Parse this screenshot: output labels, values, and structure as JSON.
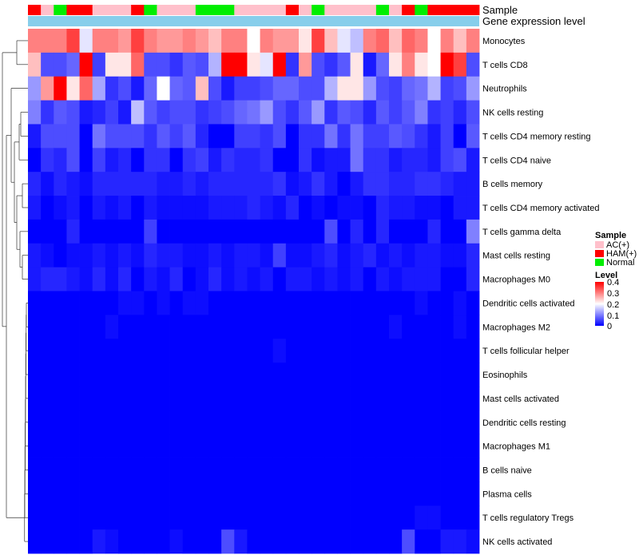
{
  "chart_data": {
    "type": "heatmap",
    "color_scale": {
      "low": "#0000ff",
      "mid": "#ffffff",
      "high": "#ff0000",
      "min": 0,
      "max": 0.4
    },
    "annotation_tracks": [
      "Sample",
      "Gene expression level"
    ],
    "sample_groups": [
      "AC(+)",
      "HAM(+)",
      "Normal"
    ],
    "sample_colors": {
      "AC(+)": "#ffc0cb",
      "HAM(+)": "#ff0000",
      "Normal": "#00ee00"
    },
    "gene_expression_color": "#87ceeb",
    "columns": [
      "HAM(+)",
      "AC(+)",
      "Normal",
      "HAM(+)",
      "HAM(+)",
      "AC(+)",
      "AC(+)",
      "AC(+)",
      "HAM(+)",
      "Normal",
      "AC(+)",
      "AC(+)",
      "AC(+)",
      "Normal",
      "Normal",
      "Normal",
      "AC(+)",
      "AC(+)",
      "AC(+)",
      "AC(+)",
      "HAM(+)",
      "AC(+)",
      "Normal",
      "AC(+)",
      "AC(+)",
      "AC(+)",
      "AC(+)",
      "Normal",
      "AC(+)",
      "HAM(+)",
      "Normal",
      "HAM(+)",
      "HAM(+)",
      "HAM(+)",
      "HAM(+)"
    ],
    "rows": [
      {
        "name": "Monocytes",
        "values": [
          0.3,
          0.3,
          0.3,
          0.35,
          0.18,
          0.3,
          0.3,
          0.28,
          0.35,
          0.3,
          0.28,
          0.28,
          0.3,
          0.28,
          0.25,
          0.3,
          0.3,
          0.2,
          0.3,
          0.28,
          0.28,
          0.22,
          0.35,
          0.25,
          0.18,
          0.15,
          0.3,
          0.32,
          0.25,
          0.32,
          0.3,
          0.2,
          0.3,
          0.25,
          0.3
        ]
      },
      {
        "name": "T cells CD8",
        "values": [
          0.25,
          0.06,
          0.06,
          0.08,
          0.4,
          0.05,
          0.22,
          0.22,
          0.32,
          0.06,
          0.06,
          0.04,
          0.07,
          0.06,
          0.14,
          0.4,
          0.4,
          0.22,
          0.18,
          0.4,
          0.04,
          0.28,
          0.06,
          0.04,
          0.07,
          0.22,
          0.02,
          0.08,
          0.22,
          0.3,
          0.22,
          0.2,
          0.4,
          0.35,
          0.06
        ]
      },
      {
        "name": "Neutrophils",
        "values": [
          0.12,
          0.28,
          0.4,
          0.22,
          0.32,
          0.13,
          0.04,
          0.06,
          0.02,
          0.08,
          0.2,
          0.08,
          0.07,
          0.25,
          0.06,
          0.02,
          0.05,
          0.05,
          0.06,
          0.08,
          0.08,
          0.06,
          0.06,
          0.14,
          0.22,
          0.22,
          0.12,
          0.06,
          0.05,
          0.08,
          0.09,
          0.14,
          0.05,
          0.06,
          0.12
        ]
      },
      {
        "name": "NK cells resting",
        "values": [
          0.1,
          0.04,
          0.07,
          0.06,
          0.02,
          0.03,
          0.05,
          0.02,
          0.15,
          0.07,
          0.05,
          0.06,
          0.06,
          0.04,
          0.05,
          0.06,
          0.08,
          0.09,
          0.12,
          0.06,
          0.04,
          0.07,
          0.12,
          0.04,
          0.07,
          0.06,
          0.03,
          0.07,
          0.05,
          0.07,
          0.1,
          0.04,
          0.05,
          0.03,
          0.06
        ]
      },
      {
        "name": "T cells CD4 memory resting",
        "values": [
          0.02,
          0.06,
          0.06,
          0.06,
          0.0,
          0.09,
          0.06,
          0.06,
          0.06,
          0.04,
          0.07,
          0.05,
          0.07,
          0.03,
          0.0,
          0.0,
          0.05,
          0.05,
          0.04,
          0.06,
          0.0,
          0.04,
          0.04,
          0.09,
          0.04,
          0.09,
          0.05,
          0.05,
          0.07,
          0.06,
          0.04,
          0.02,
          0.05,
          0.0,
          0.07
        ]
      },
      {
        "name": "T cells CD4 naive",
        "values": [
          0.0,
          0.04,
          0.03,
          0.06,
          0.0,
          0.05,
          0.02,
          0.03,
          0.0,
          0.04,
          0.04,
          0.0,
          0.04,
          0.05,
          0.02,
          0.04,
          0.03,
          0.03,
          0.04,
          0.0,
          0.0,
          0.04,
          0.01,
          0.02,
          0.02,
          0.09,
          0.04,
          0.04,
          0.02,
          0.03,
          0.03,
          0.02,
          0.05,
          0.06,
          0.02
        ]
      },
      {
        "name": "B cells memory",
        "values": [
          0.03,
          0.01,
          0.03,
          0.02,
          0.01,
          0.03,
          0.03,
          0.03,
          0.03,
          0.03,
          0.02,
          0.02,
          0.03,
          0.02,
          0.03,
          0.03,
          0.03,
          0.03,
          0.03,
          0.04,
          0.01,
          0.02,
          0.04,
          0.02,
          0.0,
          0.02,
          0.04,
          0.04,
          0.03,
          0.03,
          0.04,
          0.04,
          0.03,
          0.02,
          0.02
        ]
      },
      {
        "name": "T cells CD4 memory activated",
        "values": [
          0.02,
          0.0,
          0.01,
          0.02,
          0.0,
          0.02,
          0.01,
          0.02,
          0.0,
          0.02,
          0.01,
          0.01,
          0.01,
          0.01,
          0.02,
          0.02,
          0.02,
          0.03,
          0.02,
          0.01,
          0.03,
          0.0,
          0.01,
          0.0,
          0.01,
          0.01,
          0.0,
          0.03,
          0.02,
          0.02,
          0.01,
          0.01,
          0.0,
          0.02,
          0.02
        ]
      },
      {
        "name": "T cells gamma delta",
        "values": [
          0.0,
          0.0,
          0.0,
          0.03,
          0.0,
          0.0,
          0.0,
          0.0,
          0.0,
          0.05,
          0.0,
          0.0,
          0.0,
          0.0,
          0.0,
          0.0,
          0.0,
          0.0,
          0.0,
          0.0,
          0.0,
          0.0,
          0.0,
          0.06,
          0.0,
          0.03,
          0.0,
          0.03,
          0.0,
          0.0,
          0.0,
          0.03,
          0.0,
          0.0,
          0.1
        ]
      },
      {
        "name": "Mast cells resting",
        "values": [
          0.02,
          0.01,
          0.0,
          0.01,
          0.01,
          0.02,
          0.01,
          0.02,
          0.01,
          0.03,
          0.02,
          0.02,
          0.01,
          0.01,
          0.02,
          0.01,
          0.02,
          0.02,
          0.01,
          0.05,
          0.01,
          0.01,
          0.02,
          0.03,
          0.01,
          0.02,
          0.03,
          0.01,
          0.02,
          0.01,
          0.02,
          0.02,
          0.01,
          0.01,
          0.03
        ]
      },
      {
        "name": "Macrophages M0",
        "values": [
          0.02,
          0.03,
          0.03,
          0.02,
          0.01,
          0.03,
          0.01,
          0.03,
          0.0,
          0.02,
          0.01,
          0.03,
          0.0,
          0.01,
          0.03,
          0.01,
          0.02,
          0.01,
          0.02,
          0.0,
          0.02,
          0.02,
          0.01,
          0.02,
          0.01,
          0.02,
          0.0,
          0.02,
          0.01,
          0.02,
          0.02,
          0.02,
          0.0,
          0.0,
          0.03
        ]
      },
      {
        "name": "Dendritic cells activated",
        "values": [
          0.0,
          0.0,
          0.0,
          0.0,
          0.0,
          0.0,
          0.0,
          0.01,
          0.01,
          0.0,
          0.01,
          0.0,
          0.01,
          0.01,
          0.0,
          0.0,
          0.0,
          0.0,
          0.0,
          0.0,
          0.0,
          0.0,
          0.0,
          0.0,
          0.0,
          0.0,
          0.0,
          0.0,
          0.0,
          0.0,
          0.01,
          0.0,
          0.0,
          0.01,
          0.0
        ]
      },
      {
        "name": "Macrophages M2",
        "values": [
          0.0,
          0.0,
          0.0,
          0.0,
          0.0,
          0.0,
          0.01,
          0.0,
          0.0,
          0.0,
          0.0,
          0.0,
          0.0,
          0.0,
          0.0,
          0.0,
          0.0,
          0.0,
          0.0,
          0.0,
          0.0,
          0.0,
          0.0,
          0.0,
          0.0,
          0.0,
          0.0,
          0.0,
          0.01,
          0.0,
          0.0,
          0.0,
          0.0,
          0.01,
          0.0
        ]
      },
      {
        "name": "T cells follicular helper",
        "values": [
          0.0,
          0.0,
          0.0,
          0.0,
          0.0,
          0.0,
          0.0,
          0.0,
          0.0,
          0.0,
          0.0,
          0.0,
          0.0,
          0.0,
          0.0,
          0.0,
          0.0,
          0.0,
          0.0,
          0.01,
          0.0,
          0.0,
          0.0,
          0.0,
          0.0,
          0.0,
          0.0,
          0.0,
          0.0,
          0.0,
          0.0,
          0.0,
          0.0,
          0.0,
          0.0
        ]
      },
      {
        "name": "Eosinophils",
        "values": [
          0.0,
          0.0,
          0.0,
          0.0,
          0.0,
          0.0,
          0.0,
          0.0,
          0.0,
          0.0,
          0.0,
          0.0,
          0.0,
          0.0,
          0.0,
          0.0,
          0.0,
          0.0,
          0.0,
          0.0,
          0.0,
          0.0,
          0.0,
          0.0,
          0.0,
          0.0,
          0.0,
          0.0,
          0.0,
          0.0,
          0.0,
          0.0,
          0.0,
          0.0,
          0.0
        ]
      },
      {
        "name": "Mast cells activated",
        "values": [
          0.0,
          0.0,
          0.0,
          0.0,
          0.0,
          0.0,
          0.0,
          0.0,
          0.0,
          0.0,
          0.0,
          0.0,
          0.0,
          0.0,
          0.0,
          0.0,
          0.0,
          0.0,
          0.0,
          0.0,
          0.0,
          0.0,
          0.0,
          0.0,
          0.0,
          0.0,
          0.0,
          0.0,
          0.0,
          0.0,
          0.0,
          0.0,
          0.0,
          0.0,
          0.0
        ]
      },
      {
        "name": "Dendritic cells resting",
        "values": [
          0.0,
          0.0,
          0.0,
          0.0,
          0.0,
          0.0,
          0.0,
          0.0,
          0.0,
          0.0,
          0.0,
          0.0,
          0.0,
          0.0,
          0.0,
          0.0,
          0.0,
          0.0,
          0.0,
          0.0,
          0.0,
          0.0,
          0.0,
          0.0,
          0.0,
          0.0,
          0.0,
          0.0,
          0.0,
          0.0,
          0.0,
          0.0,
          0.0,
          0.0,
          0.0
        ]
      },
      {
        "name": "Macrophages M1",
        "values": [
          0.0,
          0.0,
          0.0,
          0.0,
          0.0,
          0.0,
          0.0,
          0.0,
          0.0,
          0.0,
          0.0,
          0.0,
          0.0,
          0.0,
          0.0,
          0.0,
          0.0,
          0.0,
          0.0,
          0.0,
          0.0,
          0.0,
          0.0,
          0.0,
          0.0,
          0.0,
          0.0,
          0.0,
          0.0,
          0.0,
          0.0,
          0.0,
          0.0,
          0.0,
          0.0
        ]
      },
      {
        "name": "B cells naive",
        "values": [
          0.0,
          0.0,
          0.0,
          0.0,
          0.0,
          0.0,
          0.0,
          0.0,
          0.0,
          0.0,
          0.0,
          0.0,
          0.0,
          0.0,
          0.0,
          0.0,
          0.0,
          0.0,
          0.0,
          0.0,
          0.0,
          0.0,
          0.0,
          0.0,
          0.0,
          0.0,
          0.0,
          0.0,
          0.0,
          0.0,
          0.0,
          0.0,
          0.0,
          0.0,
          0.0
        ]
      },
      {
        "name": "Plasma cells",
        "values": [
          0.0,
          0.0,
          0.0,
          0.0,
          0.0,
          0.0,
          0.0,
          0.0,
          0.0,
          0.0,
          0.0,
          0.0,
          0.0,
          0.0,
          0.0,
          0.0,
          0.0,
          0.0,
          0.0,
          0.0,
          0.0,
          0.0,
          0.0,
          0.0,
          0.0,
          0.0,
          0.0,
          0.0,
          0.0,
          0.0,
          0.0,
          0.0,
          0.0,
          0.0,
          0.0
        ]
      },
      {
        "name": "T cells regulatory  Tregs",
        "values": [
          0.0,
          0.0,
          0.0,
          0.0,
          0.0,
          0.0,
          0.0,
          0.0,
          0.0,
          0.0,
          0.0,
          0.0,
          0.0,
          0.0,
          0.0,
          0.0,
          0.0,
          0.0,
          0.0,
          0.0,
          0.0,
          0.0,
          0.0,
          0.0,
          0.0,
          0.0,
          0.0,
          0.0,
          0.0,
          0.0,
          0.01,
          0.01,
          0.0,
          0.0,
          0.0
        ]
      },
      {
        "name": "NK cells activated",
        "values": [
          0.0,
          0.0,
          0.0,
          0.0,
          0.0,
          0.02,
          0.01,
          0.0,
          0.0,
          0.0,
          0.0,
          0.01,
          0.0,
          0.0,
          0.0,
          0.06,
          0.02,
          0.0,
          0.0,
          0.0,
          0.0,
          0.0,
          0.0,
          0.0,
          0.0,
          0.0,
          0.0,
          0.0,
          0.0,
          0.06,
          0.0,
          0.0,
          0.02,
          0.02,
          0.01
        ]
      }
    ],
    "legend": {
      "sample_title": "Sample",
      "sample_entries": [
        "AC(+)",
        "HAM(+)",
        "Normal"
      ],
      "level_title": "Level",
      "level_ticks": [
        "0.4",
        "0.3",
        "0.2",
        "0.1",
        "0"
      ]
    }
  }
}
